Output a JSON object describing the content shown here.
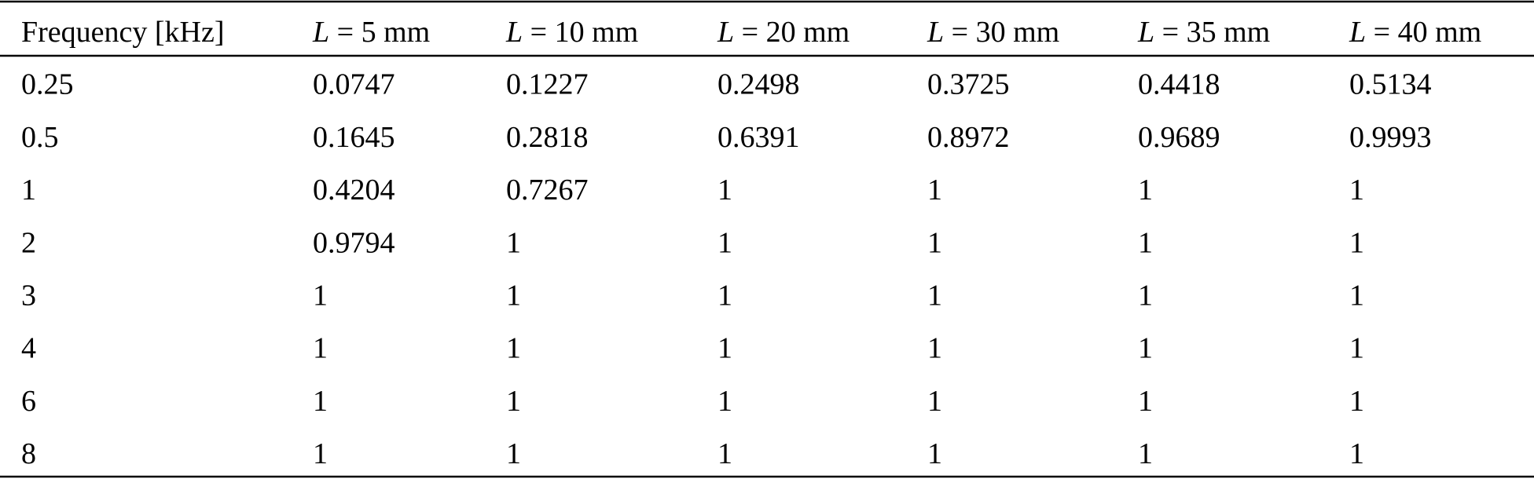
{
  "table": {
    "header": [
      {
        "text": "Frequency [kHz]"
      },
      {
        "symbol": "L",
        "text": " = 5 mm"
      },
      {
        "symbol": "L",
        "text": " = 10 mm"
      },
      {
        "symbol": "L",
        "text": " = 20 mm"
      },
      {
        "symbol": "L",
        "text": " = 30 mm"
      },
      {
        "symbol": "L",
        "text": " = 35 mm"
      },
      {
        "symbol": "L",
        "text": " = 40 mm"
      }
    ],
    "rows": [
      [
        "0.25",
        "0.0747",
        "0.1227",
        "0.2498",
        "0.3725",
        "0.4418",
        "0.5134"
      ],
      [
        "0.5",
        "0.1645",
        "0.2818",
        "0.6391",
        "0.8972",
        "0.9689",
        "0.9993"
      ],
      [
        "1",
        "0.4204",
        "0.7267",
        "1",
        "1",
        "1",
        "1"
      ],
      [
        "2",
        "0.9794",
        "1",
        "1",
        "1",
        "1",
        "1"
      ],
      [
        "3",
        "1",
        "1",
        "1",
        "1",
        "1",
        "1"
      ],
      [
        "4",
        "1",
        "1",
        "1",
        "1",
        "1",
        "1"
      ],
      [
        "6",
        "1",
        "1",
        "1",
        "1",
        "1",
        "1"
      ],
      [
        "8",
        "1",
        "1",
        "1",
        "1",
        "1",
        "1"
      ]
    ]
  }
}
